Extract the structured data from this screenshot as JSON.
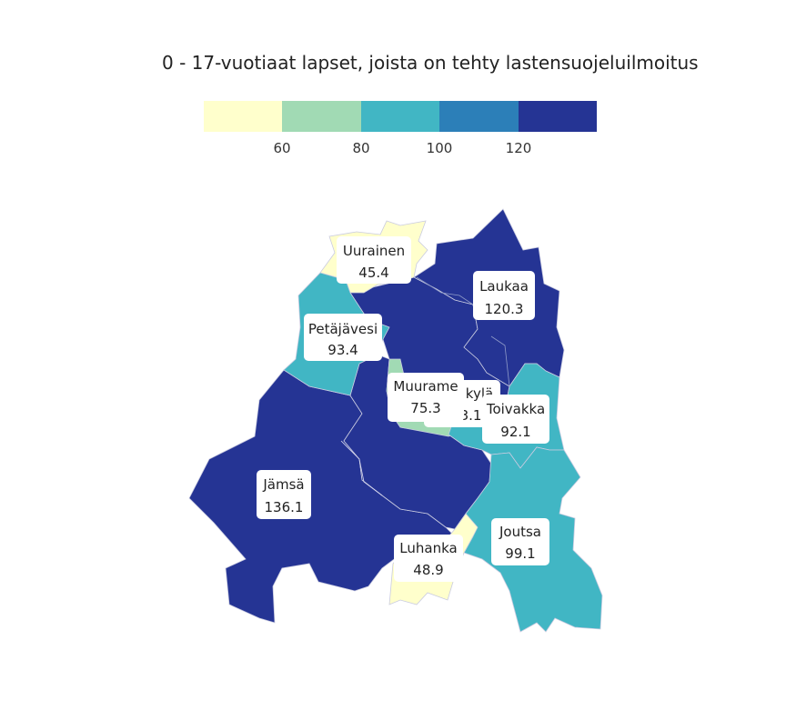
{
  "title": "0 - 17-vuotiaat lapset, joista on tehty lastensuojeluilmoitus",
  "legend": {
    "colors": [
      "#ffffcc",
      "#a1dab4",
      "#41b6c4",
      "#2c7fb8",
      "#253494"
    ],
    "ticks": [
      "60",
      "80",
      "100",
      "120"
    ]
  },
  "regions": [
    {
      "name": "Uurainen",
      "value": "45.4",
      "color": "#ffffcc"
    },
    {
      "name": "Laukaa",
      "value": "120.3",
      "color": "#253494"
    },
    {
      "name": "Petäjävesi",
      "value": "93.4",
      "color": "#41b6c4"
    },
    {
      "name": "Muurame",
      "value": "75.3",
      "color": "#a1dab4"
    },
    {
      "name": "Jyväskylä",
      "value": "123.1",
      "color": "#253494",
      "visible_name": "kylä",
      "visible_value": "123.1"
    },
    {
      "name": "Toivakka",
      "value": "92.1",
      "color": "#41b6c4"
    },
    {
      "name": "Jämsä",
      "value": "136.1",
      "color": "#253494"
    },
    {
      "name": "Joutsa",
      "value": "99.1",
      "color": "#41b6c4"
    },
    {
      "name": "Luhanka",
      "value": "48.9",
      "color": "#ffffcc"
    }
  ]
}
